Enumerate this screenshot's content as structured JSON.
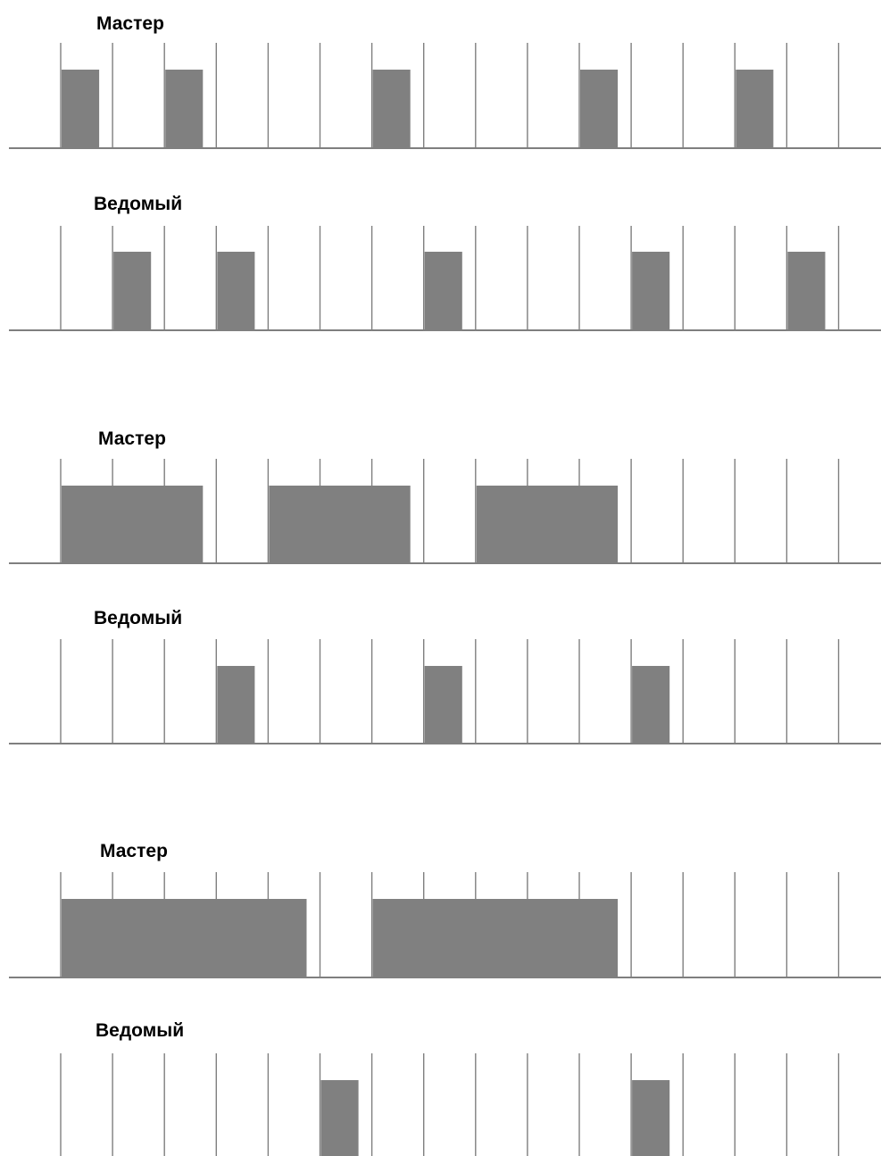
{
  "colors": {
    "slot_line": "#7f7f7f",
    "baseline": "#7f7f7f",
    "packet": "#808080",
    "background": "#ffffff"
  },
  "slot_count": 16,
  "diagrams": [
    {
      "master": {
        "label": "Мастер",
        "packets": [
          [
            1,
            1
          ],
          [
            3,
            1
          ],
          [
            7,
            1
          ],
          [
            11,
            1
          ],
          [
            14,
            1
          ]
        ]
      },
      "slave": {
        "label": "Ведомый",
        "packets": [
          [
            2,
            1
          ],
          [
            4,
            1
          ],
          [
            8,
            1
          ],
          [
            12,
            1
          ],
          [
            15,
            1
          ]
        ]
      }
    },
    {
      "master": {
        "label": "Мастер",
        "packets": [
          [
            1,
            3
          ],
          [
            5,
            3
          ],
          [
            9,
            3
          ]
        ]
      },
      "slave": {
        "label": "Ведомый",
        "packets": [
          [
            4,
            1
          ],
          [
            8,
            1
          ],
          [
            12,
            1
          ]
        ]
      }
    },
    {
      "master": {
        "label": "Мастер",
        "packets": [
          [
            1,
            5
          ],
          [
            7,
            5
          ]
        ]
      },
      "slave": {
        "label": "Ведомый",
        "packets": [
          [
            6,
            1
          ],
          [
            12,
            1
          ]
        ]
      }
    }
  ]
}
